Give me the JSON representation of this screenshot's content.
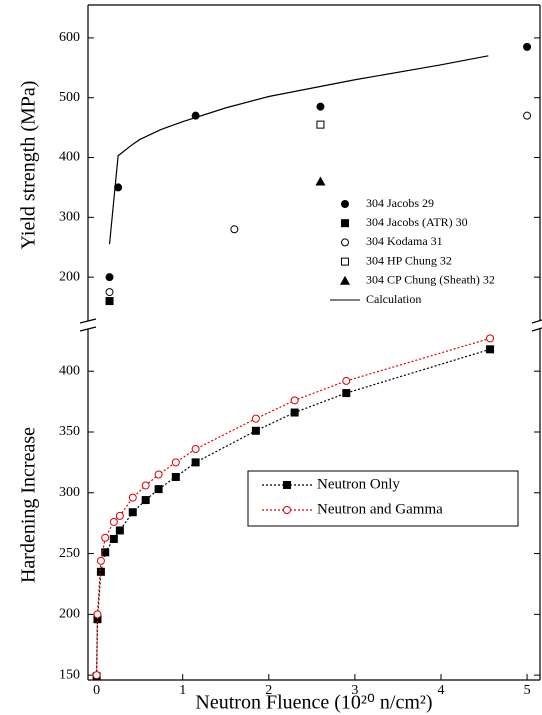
{
  "chart_data": [
    {
      "type": "scatter",
      "ylabel": "Yield strength (MPa)",
      "xlim": [
        -0.1,
        5.15
      ],
      "ylim": [
        120,
        655
      ],
      "yticks": [
        200,
        300,
        400,
        500,
        600
      ],
      "legend": "center-right",
      "series": [
        {
          "name": "304 Jacobs 29",
          "color": "#000000",
          "marker": "circle-filled",
          "x": [
            0.15,
            0.25,
            1.15,
            2.6,
            5.0
          ],
          "values": [
            200,
            350,
            470,
            485,
            585
          ]
        },
        {
          "name": "304 Jacobs (ATR) 30",
          "color": "#000000",
          "marker": "square-filled",
          "x": [
            0.15
          ],
          "values": [
            160
          ]
        },
        {
          "name": "304 Kodama 31",
          "color": "#000000",
          "marker": "circle-open",
          "x": [
            0.15,
            1.6,
            5.0
          ],
          "values": [
            175,
            280,
            470
          ]
        },
        {
          "name": "304 HP Chung 32",
          "color": "#000000",
          "marker": "square-open",
          "x": [
            2.6
          ],
          "values": [
            455
          ]
        },
        {
          "name": "304 CP Chung (Sheath) 32",
          "color": "#000000",
          "marker": "triangle-filled",
          "x": [
            2.6
          ],
          "values": [
            360
          ]
        },
        {
          "name": "Calculation",
          "color": "#000000",
          "marker": "none",
          "line": "solid",
          "x": [
            0.15,
            0.25,
            0.4,
            0.5,
            0.75,
            1,
            1.5,
            2,
            3,
            4,
            4.55
          ],
          "values": [
            255,
            403,
            420,
            430,
            447,
            460,
            483,
            502,
            530,
            555,
            570
          ]
        }
      ]
    },
    {
      "type": "line",
      "ylabel": "Hardening Increase",
      "xlabel": "Neutron Fluence (10²⁰ n/cm²)",
      "xlim": [
        -0.1,
        5.15
      ],
      "xticks": [
        0,
        1,
        2,
        3,
        4,
        5
      ],
      "ylim": [
        146,
        438
      ],
      "yticks": [
        150,
        200,
        250,
        300,
        350,
        400
      ],
      "legend": "lower-right",
      "x": [
        0,
        0.01,
        0.05,
        0.1,
        0.2,
        0.27,
        0.42,
        0.57,
        0.72,
        0.92,
        1.15,
        1.85,
        2.3,
        2.9,
        4.57
      ],
      "series": [
        {
          "name": "Neutron Only",
          "color": "#000000",
          "marker": "square-filled",
          "line": "dotted",
          "values": [
            149,
            196,
            235,
            251,
            262,
            269,
            284,
            294,
            303,
            313,
            325,
            351,
            366,
            382,
            418
          ]
        },
        {
          "name": "Neutron and Gamma",
          "color": "#e00000",
          "marker": "circle-open",
          "line": "dotted",
          "values": [
            150,
            200,
            244,
            263,
            276,
            281,
            296,
            306,
            315,
            325,
            336,
            361,
            376,
            392,
            427
          ]
        }
      ]
    }
  ]
}
